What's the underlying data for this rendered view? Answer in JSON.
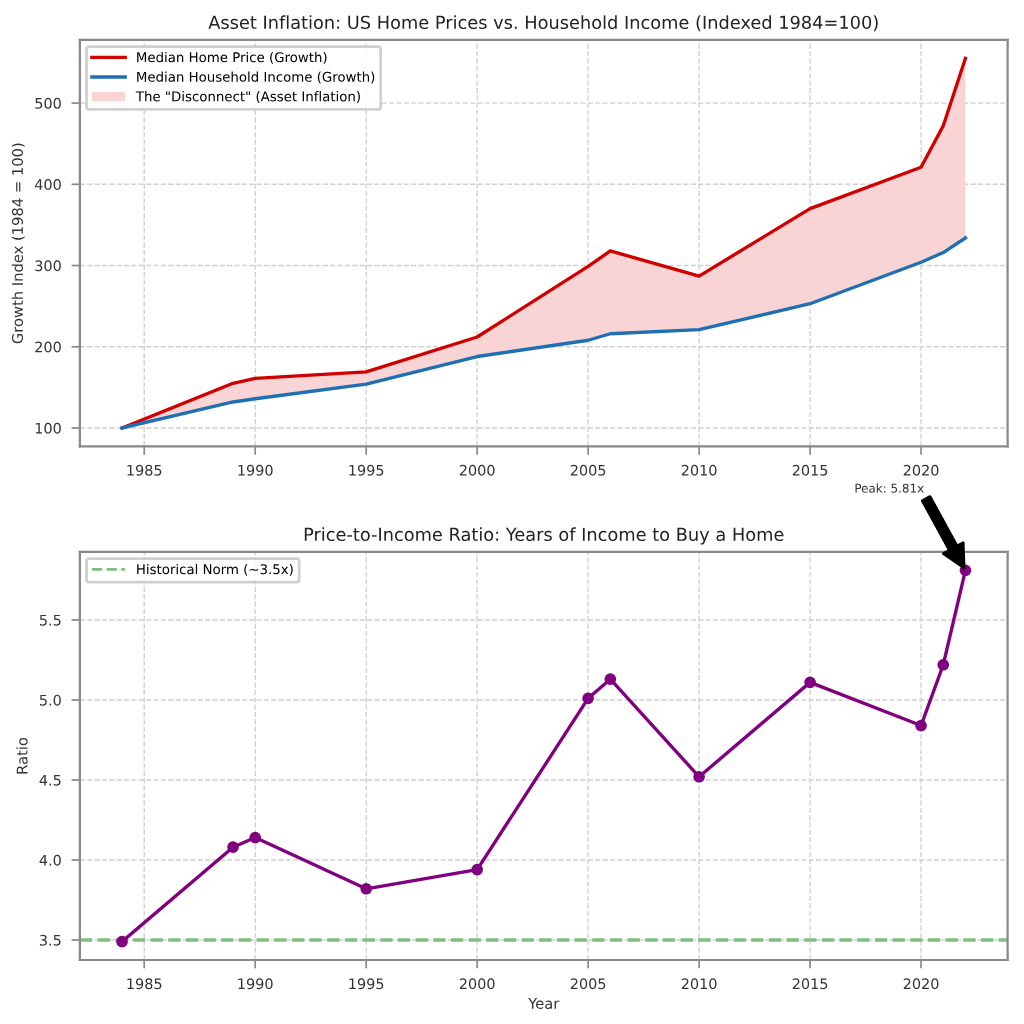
{
  "chart_data": [
    {
      "type": "line",
      "title": "Asset Inflation: US Home Prices vs. Household Income (Indexed 1984=100)",
      "ylabel": "Growth Index (1984 = 100)",
      "x": [
        1984,
        1989,
        1990,
        1995,
        2000,
        2005,
        2006,
        2010,
        2015,
        2020,
        2021,
        2022
      ],
      "series": [
        {
          "name": "Median Home Price (Growth)",
          "color": "#d10000",
          "values": [
            100,
            155,
            161,
            169,
            212,
            299,
            318,
            287,
            370,
            421,
            472,
            555
          ]
        },
        {
          "name": "Median Household Income (Growth)",
          "color": "#1f6fb4",
          "values": [
            100,
            132,
            136,
            154,
            188,
            208,
            216,
            221,
            253,
            304,
            316,
            334
          ]
        },
        {
          "name": "The \"Disconnect\" (Asset Inflation)",
          "type": "area",
          "color": "#f9d4d4",
          "values": [
            null,
            null,
            null,
            null,
            null,
            null,
            null,
            null,
            null,
            null,
            null,
            null
          ],
          "lower": [
            100,
            132,
            136,
            154,
            188,
            208,
            216,
            221,
            253,
            304,
            316,
            334
          ],
          "upper": [
            100,
            155,
            161,
            169,
            212,
            299,
            318,
            287,
            370,
            421,
            472,
            555
          ]
        }
      ],
      "xlim": [
        1982.1,
        2023.9
      ],
      "xticks": [
        1985,
        1990,
        1995,
        2000,
        2005,
        2010,
        2015,
        2020
      ],
      "ylim": [
        77.25,
        577.75
      ],
      "yticks": [
        100,
        200,
        300,
        400,
        500
      ],
      "grid": true,
      "legend": "top left",
      "line_style": "solid",
      "marker": "none"
    },
    {
      "type": "line",
      "title": "Price-to-Income Ratio: Years of Income to Buy a Home",
      "xlabel": "Year",
      "ylabel": "Ratio",
      "x": [
        1984,
        1989,
        1990,
        1995,
        2000,
        2005,
        2006,
        2010,
        2015,
        2020,
        2021,
        2022
      ],
      "series": [
        {
          "color": "#800080",
          "values": [
            3.49,
            4.08,
            4.14,
            3.82,
            3.94,
            5.01,
            5.13,
            4.52,
            5.11,
            4.84,
            5.22,
            5.81
          ]
        }
      ],
      "ref_lines": [
        {
          "axis": "y",
          "value": 3.5,
          "label": "Historical Norm (~3.5x)",
          "color": "#7fbf7f",
          "line_style": "dashed"
        }
      ],
      "annotations": [
        "Peak: 5.81x"
      ],
      "xlim": [
        1982.1,
        2023.9
      ],
      "xticks": [
        1985,
        1990,
        1995,
        2000,
        2005,
        2010,
        2015,
        2020
      ],
      "ylim": [
        3.375,
        5.925
      ],
      "yticks": [
        3.5,
        {
          "value": 4,
          "label": "4.0"
        },
        4.5,
        {
          "value": 5,
          "label": "5.0"
        },
        5.5
      ],
      "grid": true,
      "legend": "top left",
      "line_style": "solid",
      "marker": "circle"
    }
  ]
}
